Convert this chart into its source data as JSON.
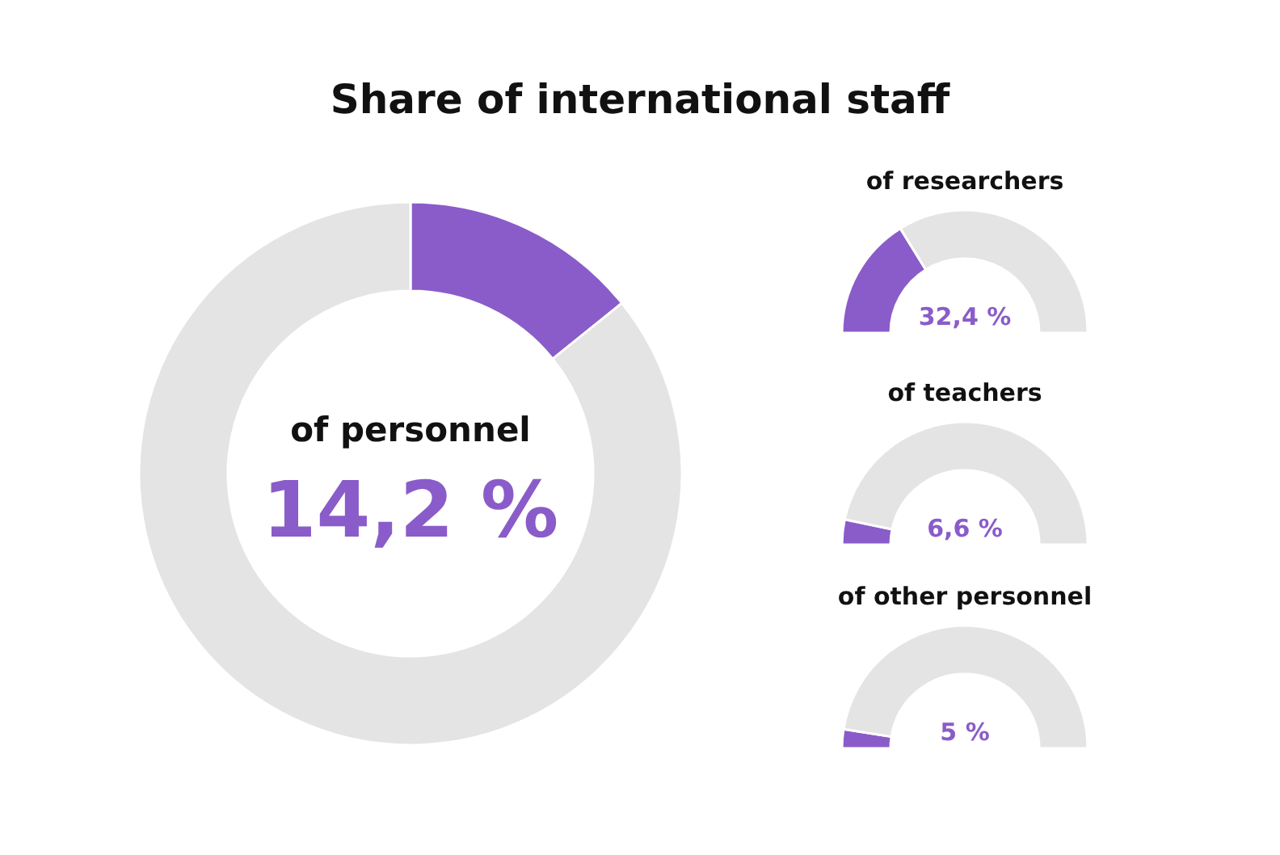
{
  "chart_data": [
    {
      "type": "donut",
      "title": "Share of international staff",
      "subtitle": "of personnel",
      "categories": [
        null,
        null
      ],
      "values": [
        14.2,
        85.8
      ],
      "colors": [
        "#8a5cc9",
        "#e4e4e4"
      ],
      "annotations": [
        "14,2 %"
      ]
    },
    {
      "type": "donut",
      "title": "of researchers",
      "categories": [
        null,
        null
      ],
      "values": [
        32.4,
        67.6
      ],
      "colors": [
        "#8a5cc9",
        "#e4e4e4"
      ],
      "annotations": [
        "32,4 %"
      ]
    },
    {
      "type": "donut",
      "title": "of teachers",
      "categories": [
        null,
        null
      ],
      "values": [
        6.6,
        93.4
      ],
      "colors": [
        "#8a5cc9",
        "#e4e4e4"
      ],
      "annotations": [
        "6,6 %"
      ]
    },
    {
      "type": "donut",
      "title": "of other personnel",
      "categories": [
        null,
        null
      ],
      "values": [
        5,
        95
      ],
      "colors": [
        "#8a5cc9",
        "#e4e4e4"
      ],
      "annotations": [
        "5 %"
      ]
    }
  ]
}
